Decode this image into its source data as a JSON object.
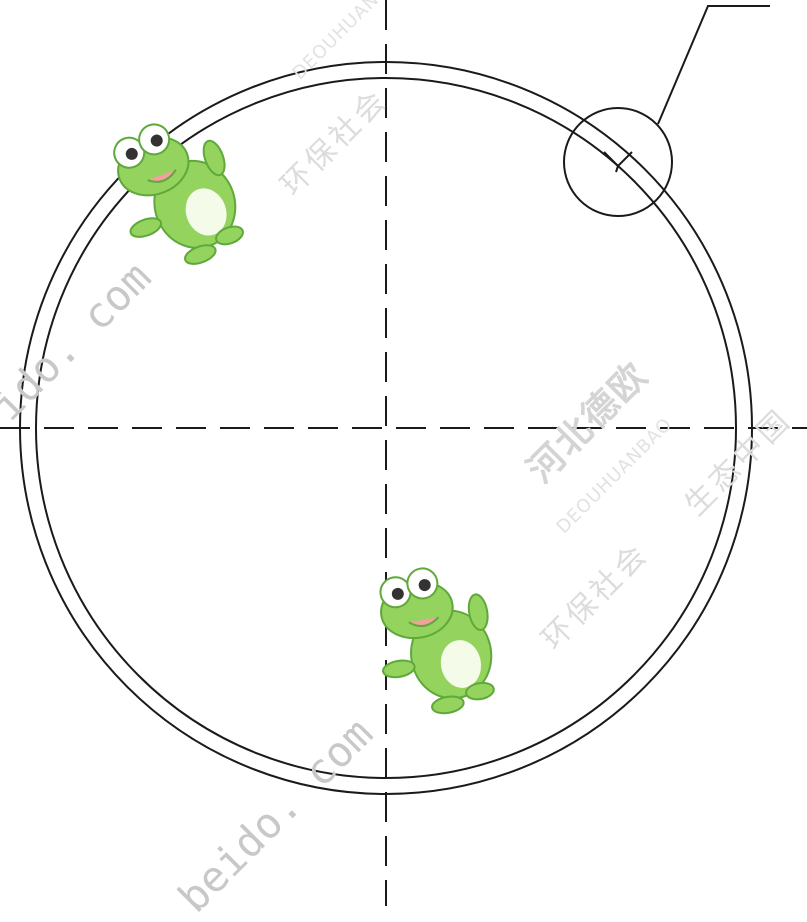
{
  "watermark": {
    "company": "河北德欧",
    "pinyin": "DEOUHUANBAO",
    "slogan_a": "环保社会",
    "slogan_b": "生态中国",
    "url_a": "ido. com",
    "url_b": "beido. com"
  },
  "colors": {
    "line": "#1a1a1a",
    "frog_body": "#93d35e",
    "frog_dark": "#5fa83a",
    "frog_belly": "#f4fbe8",
    "watermark": "#d4d4d4"
  },
  "icons": [
    "frog-mascot-icon"
  ]
}
